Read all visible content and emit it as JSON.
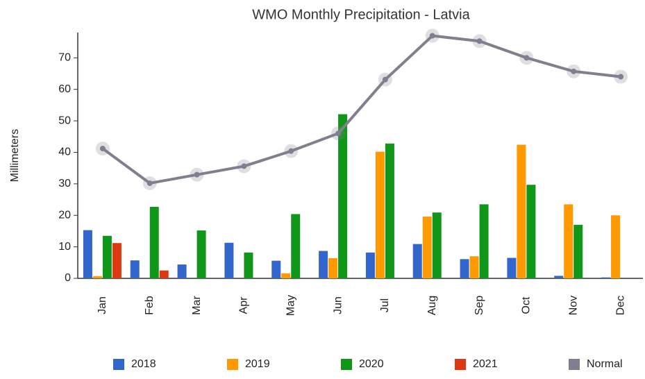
{
  "chart_data": {
    "type": "bar",
    "title": "WMO Monthly Precipitation - Latvia",
    "y_label": "Millimeters",
    "categories": [
      "Jan",
      "Feb",
      "Mar",
      "Apr",
      "May",
      "Jun",
      "Jul",
      "Aug",
      "Sep",
      "Oct",
      "Nov",
      "Dec"
    ],
    "series": [
      {
        "name": "2018",
        "color": "#3366cc",
        "values": [
          15.3,
          5.7,
          4.4,
          11.3,
          5.6,
          8.7,
          8.2,
          10.9,
          6.1,
          6.5,
          0.8,
          0.3
        ]
      },
      {
        "name": "2019",
        "color": "#ff9900",
        "values": [
          0.7,
          null,
          null,
          null,
          1.6,
          6.4,
          40.2,
          19.6,
          7.0,
          42.4,
          23.5,
          20.0
        ]
      },
      {
        "name": "2020",
        "color": "#109618",
        "values": [
          13.5,
          22.7,
          15.2,
          8.2,
          20.4,
          52.1,
          42.8,
          20.9,
          23.5,
          29.7,
          17.0,
          null
        ]
      },
      {
        "name": "2021",
        "color": "#dc3912",
        "values": [
          11.2,
          2.5,
          null,
          null,
          null,
          null,
          null,
          null,
          null,
          null,
          null,
          null
        ]
      },
      {
        "name": "Normal",
        "color": "#807f8f",
        "type": "line",
        "values": [
          41.2,
          30.2,
          32.9,
          35.6,
          40.4,
          46.0,
          63.1,
          77.0,
          75.3,
          70.0,
          65.7,
          64.0
        ]
      }
    ],
    "ylim": [
      0,
      78
    ],
    "yticks": [
      0,
      10,
      20,
      30,
      40,
      50,
      60,
      70
    ],
    "grid": false,
    "legend": "bottom"
  }
}
